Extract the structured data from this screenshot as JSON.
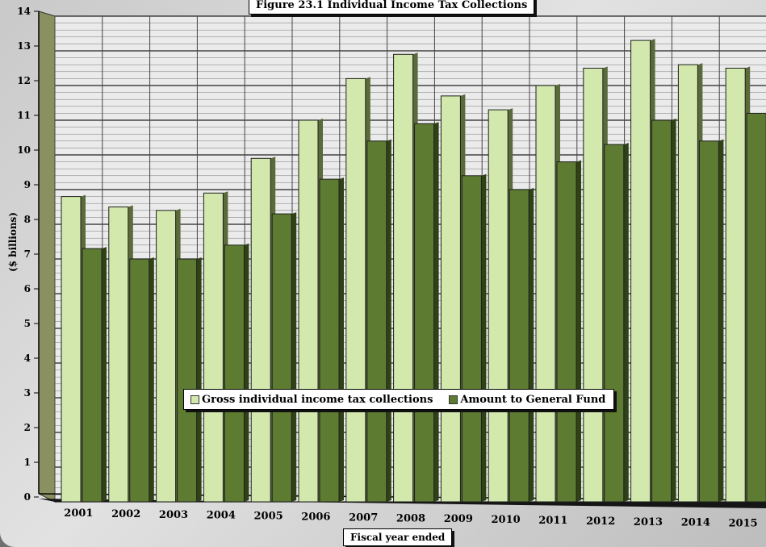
{
  "chart_data": {
    "type": "bar",
    "title": "Figure 23.1 Individual Income Tax Collections",
    "xlabel": "Fiscal year ended",
    "ylabel": "($ billions)",
    "ylim": [
      0,
      14
    ],
    "yticks": [
      "0",
      "1",
      "2",
      "3",
      "4",
      "5",
      "6",
      "7",
      "8",
      "9",
      "10",
      "11",
      "12",
      "13",
      "14"
    ],
    "categories": [
      "2001",
      "2002",
      "2003",
      "2004",
      "2005",
      "2006",
      "2007",
      "2008",
      "2009",
      "2010",
      "2011",
      "2012",
      "2013",
      "2014",
      "2015"
    ],
    "series": [
      {
        "name": "Gross individual income tax collections",
        "color": "#d2e8ac",
        "values": [
          8.8,
          8.5,
          8.4,
          8.9,
          9.9,
          11.0,
          12.2,
          12.9,
          11.7,
          11.3,
          12.0,
          12.5,
          13.3,
          12.6,
          12.5
        ]
      },
      {
        "name": "Amount to General Fund",
        "color": "#5e7c31",
        "values": [
          7.3,
          7.0,
          7.0,
          7.4,
          8.3,
          9.3,
          10.4,
          10.9,
          9.4,
          9.0,
          9.8,
          10.3,
          11.0,
          10.4,
          11.2
        ]
      }
    ],
    "grid": true,
    "legend_position": "bottom-center"
  }
}
